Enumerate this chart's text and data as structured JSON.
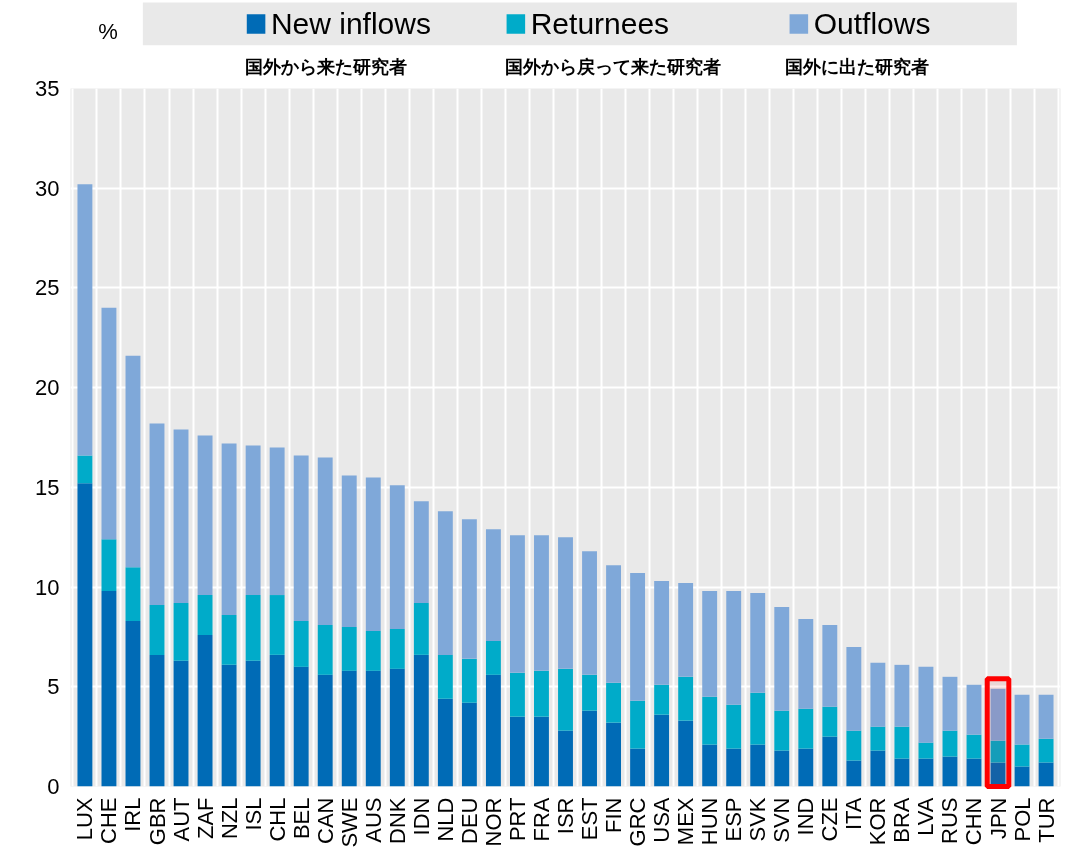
{
  "chart_data": {
    "type": "bar",
    "stacked": true,
    "ylabel": "%",
    "categories": [
      "LUX",
      "CHE",
      "IRL",
      "GBR",
      "AUT",
      "ZAF",
      "NZL",
      "ISL",
      "CHL",
      "BEL",
      "CAN",
      "SWE",
      "AUS",
      "DNK",
      "IDN",
      "NLD",
      "DEU",
      "NOR",
      "PRT",
      "FRA",
      "ISR",
      "EST",
      "FIN",
      "GRC",
      "USA",
      "MEX",
      "HUN",
      "ESP",
      "SVK",
      "SVN",
      "IND",
      "CZE",
      "ITA",
      "KOR",
      "BRA",
      "LVA",
      "RUS",
      "CHN",
      "JPN",
      "POL",
      "TUR"
    ],
    "series": [
      {
        "name": "New inflows",
        "color": "#006bb6",
        "values": [
          15.2,
          9.8,
          8.3,
          6.6,
          6.3,
          7.6,
          6.1,
          6.3,
          6.6,
          6.0,
          5.6,
          5.8,
          5.8,
          5.9,
          6.6,
          4.4,
          4.2,
          5.6,
          3.5,
          3.5,
          2.8,
          3.8,
          3.2,
          1.9,
          3.6,
          3.3,
          2.1,
          1.9,
          2.1,
          1.8,
          1.9,
          2.5,
          1.3,
          1.8,
          1.4,
          1.4,
          1.5,
          1.4,
          1.2,
          1.0,
          1.2
        ]
      },
      {
        "name": "Returnees",
        "color": "#00abc9",
        "values": [
          1.4,
          2.6,
          2.7,
          2.5,
          2.9,
          2.0,
          2.5,
          3.3,
          3.0,
          2.3,
          2.5,
          2.2,
          2.0,
          2.0,
          2.6,
          2.2,
          2.2,
          1.7,
          2.2,
          2.3,
          3.1,
          1.8,
          2.0,
          2.4,
          1.5,
          2.2,
          2.4,
          2.2,
          2.6,
          2.0,
          2.0,
          1.5,
          1.5,
          1.2,
          1.6,
          0.8,
          1.3,
          1.2,
          1.1,
          1.1,
          1.2
        ]
      },
      {
        "name": "Outflows",
        "color": "#7fa8d9",
        "values": [
          13.6,
          11.6,
          10.6,
          9.1,
          8.7,
          8.0,
          8.6,
          7.5,
          7.4,
          8.3,
          8.4,
          7.6,
          7.7,
          7.2,
          5.1,
          7.2,
          7.0,
          5.6,
          6.9,
          6.8,
          6.6,
          6.2,
          5.9,
          6.4,
          5.2,
          4.7,
          5.3,
          5.7,
          5.0,
          5.2,
          4.5,
          4.1,
          4.2,
          3.2,
          3.1,
          3.8,
          2.7,
          2.5,
          2.6,
          2.5,
          2.2
        ]
      }
    ],
    "annotations": [
      "国外から来た研究者",
      "国外から戻って来た研究者",
      "国外に出た研究者"
    ],
    "ylim": [
      0,
      35
    ],
    "yticks": [
      0,
      5,
      10,
      15,
      20,
      25,
      30,
      35
    ],
    "grid": true,
    "legend": "top",
    "bands": [
      {
        "axis": "x",
        "from": "JPN",
        "to": "JPN",
        "color": "#ff0000"
      }
    ]
  }
}
